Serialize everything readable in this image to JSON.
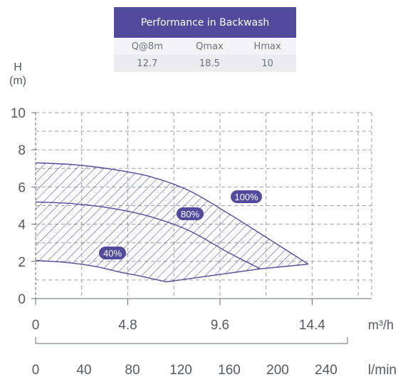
{
  "table": {
    "title": "Performance in Backwash",
    "headers": [
      "Q@8m",
      "Qmax",
      "Hmax"
    ],
    "values": [
      "12.7",
      "18.5",
      "10"
    ]
  },
  "colors": {
    "accent": "#514a9d",
    "axis": "#666b75",
    "grid": "#9a9ea6"
  },
  "chart_data": {
    "type": "area",
    "ylabel_line1": "H",
    "ylabel_line2": "(m)",
    "ylim": [
      0,
      10
    ],
    "yticks": [
      "0",
      "2",
      "4",
      "6",
      "8",
      "10"
    ],
    "xlim": [
      0,
      17.5
    ],
    "x_primary_unit": "m³/h",
    "x_primary_ticks": [
      {
        "value": 0,
        "label": "0"
      },
      {
        "value": 4.8,
        "label": "4.8"
      },
      {
        "value": 9.6,
        "label": "9.6"
      },
      {
        "value": 14.4,
        "label": "14.4"
      }
    ],
    "x_secondary_unit": "l/min",
    "x_secondary_ticks": [
      "0",
      "40",
      "80",
      "120",
      "160",
      "200",
      "240"
    ],
    "grid": true,
    "hatched_region": true,
    "curves": [
      {
        "label": "100%",
        "x": [
          0,
          2,
          4,
          6,
          8,
          10,
          12,
          14.2
        ],
        "y": [
          7.3,
          7.2,
          6.95,
          6.55,
          5.8,
          4.6,
          3.3,
          1.85
        ]
      },
      {
        "label": "80%",
        "x": [
          0,
          2,
          4,
          6,
          8,
          10,
          11.7
        ],
        "y": [
          5.2,
          5.1,
          4.85,
          4.4,
          3.65,
          2.5,
          1.6
        ]
      },
      {
        "label": "40%",
        "x": [
          0,
          1.5,
          3,
          4.5,
          5.5,
          6.8
        ],
        "y": [
          2.05,
          1.95,
          1.75,
          1.4,
          1.2,
          0.9
        ]
      }
    ],
    "bottom_boundary": {
      "x": [
        6.8,
        11.7,
        14.2
      ],
      "y": [
        0.9,
        1.6,
        1.85
      ]
    }
  }
}
